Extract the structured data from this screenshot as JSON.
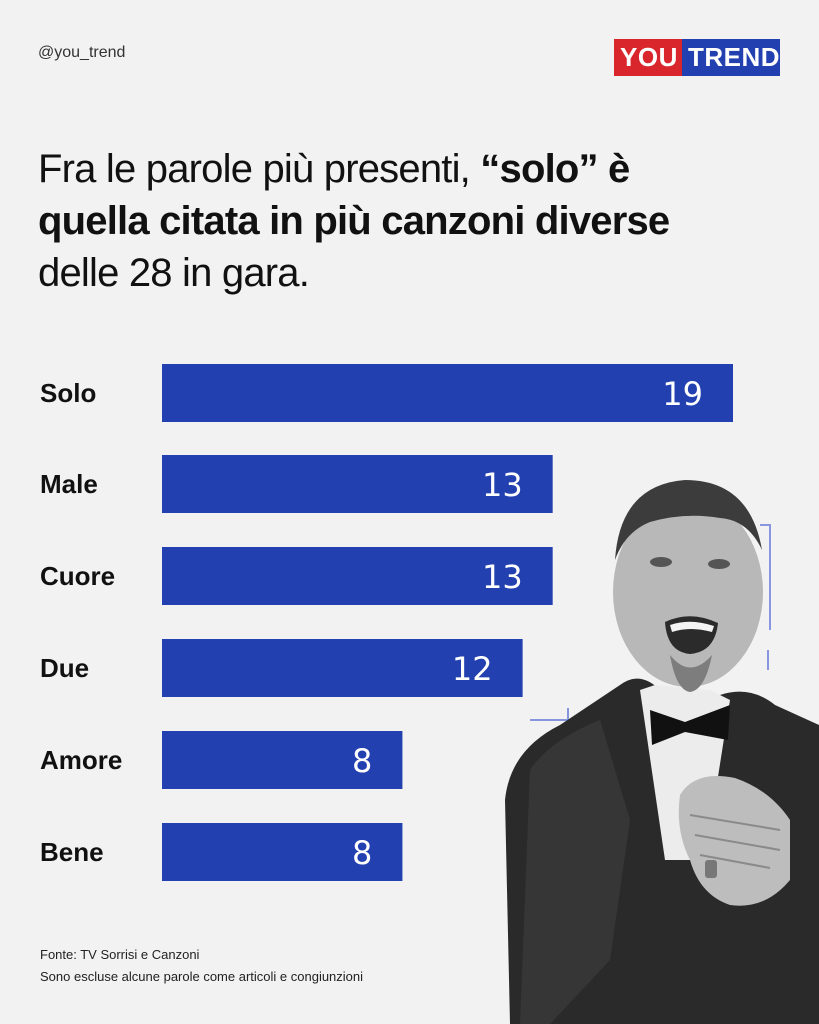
{
  "header": {
    "handle": "@you_trend",
    "logo_left": "YOU",
    "logo_right": "TREND"
  },
  "headline": {
    "part1": "Fra le parole più presenti, ",
    "part2_bold": "“solo” è quella citata in più canzoni diverse",
    "part3": " delle 28 in gara."
  },
  "chart_data": {
    "type": "bar",
    "orientation": "horizontal",
    "categories": [
      "Solo",
      "Male",
      "Cuore",
      "Due",
      "Amore",
      "Bene"
    ],
    "values": [
      19,
      13,
      13,
      12,
      8,
      8
    ],
    "bar_color": "#2240b0",
    "grid": false,
    "legend": "none"
  },
  "footer": {
    "source": "Fonte: TV Sorrisi e Canzoni",
    "note": "Sono escluse alcune parole come articoli e congiunzioni"
  },
  "colors": {
    "accent_blue": "#2240b0",
    "accent_red": "#d9262c",
    "background": "#f2f2f2"
  }
}
